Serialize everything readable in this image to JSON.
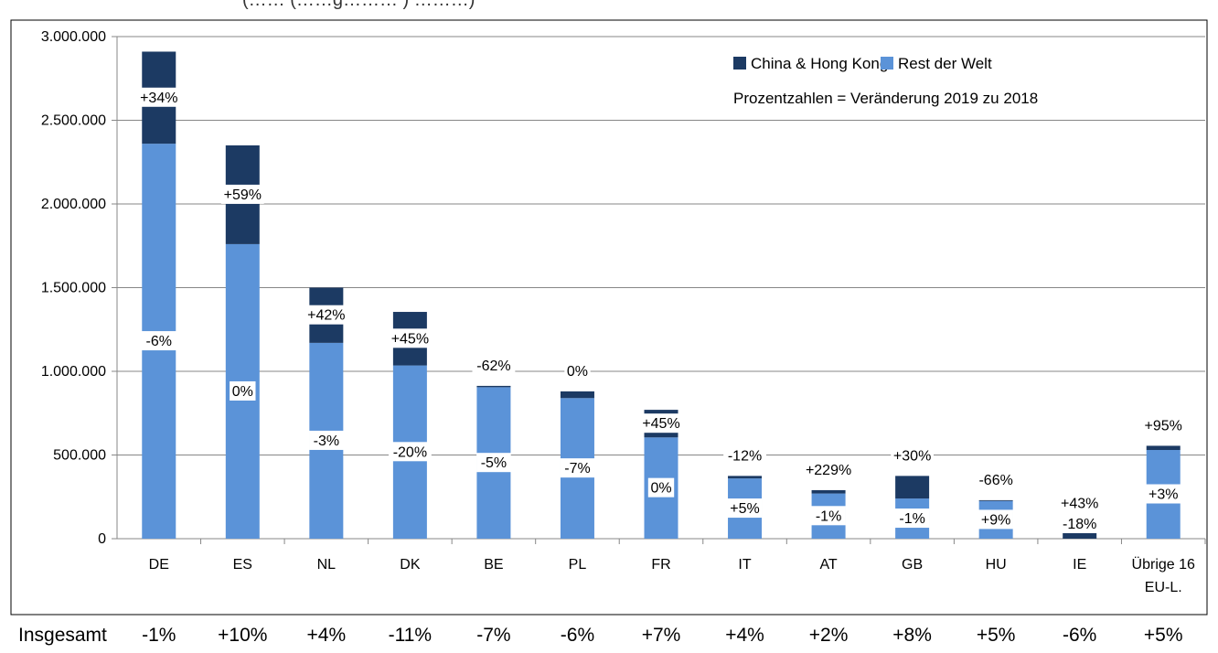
{
  "chart_data": {
    "type": "bar",
    "stacked": true,
    "title_fragment": "(…… (……g……… ) ………)",
    "categories": [
      "DE",
      "ES",
      "NL",
      "DK",
      "BE",
      "PL",
      "FR",
      "IT",
      "AT",
      "GB",
      "HU",
      "IE",
      "Übrige 16 EU-L."
    ],
    "category_lines": [
      [
        "DE"
      ],
      [
        "ES"
      ],
      [
        "NL"
      ],
      [
        "DK"
      ],
      [
        "BE"
      ],
      [
        "PL"
      ],
      [
        "FR"
      ],
      [
        "IT"
      ],
      [
        "AT"
      ],
      [
        "GB"
      ],
      [
        "HU"
      ],
      [
        "IE"
      ],
      [
        "Übrige 16",
        "EU-L."
      ]
    ],
    "series": [
      {
        "name": "Rest der Welt",
        "color": "#5b93d8",
        "values": [
          2360000,
          1760000,
          1170000,
          1035000,
          905000,
          840000,
          605000,
          360000,
          270000,
          240000,
          225000,
          0,
          530000
        ],
        "change_labels": [
          "-6%",
          "0%",
          "-3%",
          "-20%",
          "-5%",
          "-7%",
          "0%",
          "+5%",
          "-1%",
          "-1%",
          "+9%",
          "-18%",
          "+3%"
        ]
      },
      {
        "name": "China & Hong Kong",
        "color": "#1c3a63",
        "values": [
          550000,
          590000,
          330000,
          320000,
          8000,
          40000,
          165000,
          15000,
          20000,
          135000,
          5000,
          90000,
          25000
        ],
        "change_labels": [
          "+34%",
          "+59%",
          "+42%",
          "+45%",
          "-62%",
          "0%",
          "+45%",
          "-12%",
          "+229%",
          "+30%",
          "-66%",
          "+43%",
          "+95%"
        ]
      }
    ],
    "y_range": [
      0,
      3000000
    ],
    "y_ticks": [
      0,
      500000,
      1000000,
      1500000,
      2000000,
      2500000,
      3000000
    ],
    "y_tick_labels": [
      "0",
      "500.000",
      "1.000.000",
      "1.500.000",
      "2.000.000",
      "2.500.000",
      "3.000.000"
    ],
    "grid": true,
    "legend_position": "top-right",
    "annotation": "Prozentzahlen = Veränderung 2019 zu 2018",
    "totals_row": {
      "label": "Insgesamt",
      "values": [
        "-1%",
        "+10%",
        "+4%",
        "-11%",
        "-7%",
        "-6%",
        "+7%",
        "+4%",
        "+2%",
        "+8%",
        "+5%",
        "-6%",
        "+5%"
      ]
    }
  }
}
